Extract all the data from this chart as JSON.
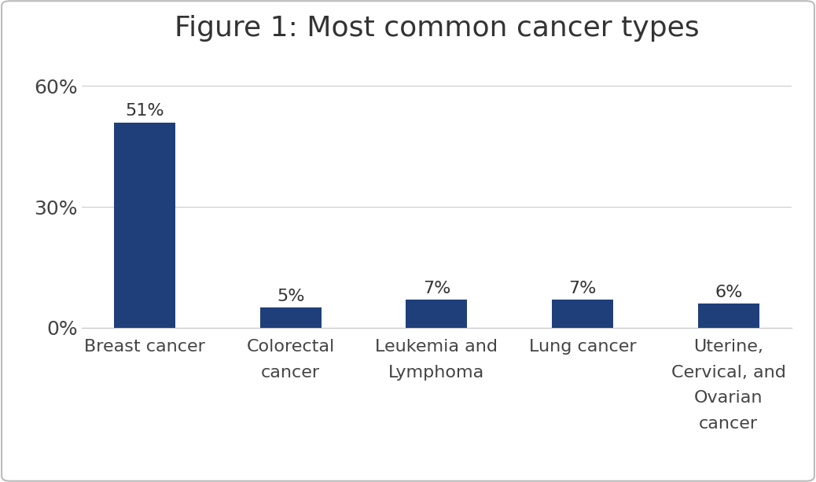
{
  "title": "Figure 1: Most common cancer types",
  "categories": [
    "Breast cancer",
    "Colorectal\ncancer",
    "Leukemia and\nLymphoma",
    "Lung cancer",
    "Uterine,\nCervical, and\nOvarian\ncancer"
  ],
  "values": [
    51,
    5,
    7,
    7,
    6
  ],
  "bar_color": "#1F3F7A",
  "bar_labels": [
    "51%",
    "5%",
    "7%",
    "7%",
    "6%"
  ],
  "yticks": [
    0,
    30,
    60
  ],
  "ytick_labels": [
    "0%",
    "30%",
    "60%"
  ],
  "ylim": [
    0,
    67
  ],
  "background_color": "#ffffff",
  "border_color": "#bbbbbb",
  "title_fontsize": 26,
  "label_fontsize": 16,
  "tick_fontsize": 18,
  "bar_label_fontsize": 16
}
